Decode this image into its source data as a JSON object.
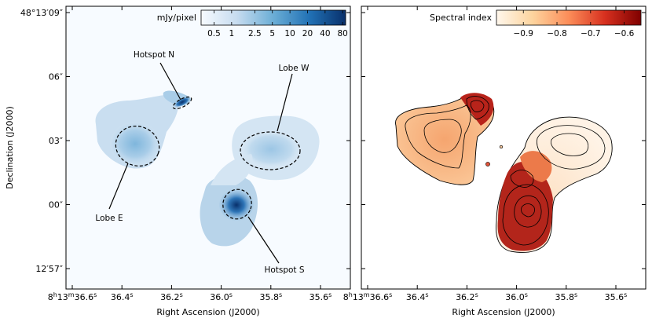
{
  "chart_data": [
    {
      "type": "heatmap",
      "panel": "left",
      "xlabel": "Right Ascension (J2000)",
      "ylabel": "Declination (J2000)",
      "x_ticks": [
        {
          "ra_seconds": 36.6,
          "label_main": "8",
          "label_h": "h",
          "label_mid": "13",
          "label_m": "m",
          "label_end": "36.6",
          "label_s": "s"
        },
        {
          "ra_seconds": 36.4,
          "label_main": "36.4",
          "label_s": "s"
        },
        {
          "ra_seconds": 36.2,
          "label_main": "36.2",
          "label_s": "s"
        },
        {
          "ra_seconds": 36.0,
          "label_main": "36.0",
          "label_s": "s"
        },
        {
          "ra_seconds": 35.8,
          "label_main": "35.8",
          "label_s": "s"
        },
        {
          "ra_seconds": 35.6,
          "label_main": "35.6",
          "label_s": "s"
        }
      ],
      "y_ticks": [
        {
          "dec_arcsec": 9,
          "label": "48°13′09″"
        },
        {
          "dec_arcsec": 6,
          "label": "06″"
        },
        {
          "dec_arcsec": 3,
          "label": "03″"
        },
        {
          "dec_arcsec": 0,
          "label": "00″"
        },
        {
          "dec_arcsec": -3,
          "label": "12′57″"
        }
      ],
      "colorbar": {
        "label": "mJy/pixel",
        "colormap": "Blues",
        "scale": "log",
        "range": [
          0.3,
          90
        ],
        "ticks": [
          {
            "value": 0.5,
            "label": "0.5"
          },
          {
            "value": 1,
            "label": "1"
          },
          {
            "value": 2.5,
            "label": "2.5"
          },
          {
            "value": 5,
            "label": "5"
          },
          {
            "value": 10,
            "label": "10"
          },
          {
            "value": 20,
            "label": "20"
          },
          {
            "value": 40,
            "label": "40"
          },
          {
            "value": 80,
            "label": "80"
          }
        ]
      },
      "annotations": [
        {
          "label": "Hotspot N",
          "ra_seconds": 36.18,
          "dec_arcsec": 4.8
        },
        {
          "label": "Lobe W",
          "ra_seconds": 35.78,
          "dec_arcsec": 2.5
        },
        {
          "label": "Lobe E",
          "ra_seconds": 36.37,
          "dec_arcsec": 2.6
        },
        {
          "label": "Hotspot S",
          "ra_seconds": 35.92,
          "dec_arcsec": 0.0
        }
      ],
      "colors": {
        "low": "#f7fbff",
        "mid": "#6baed6",
        "high": "#08306b"
      }
    },
    {
      "type": "heatmap",
      "panel": "right",
      "xlabel": "Right Ascension (J2000)",
      "colorbar": {
        "label": "Spectral index",
        "colormap": "OrRd",
        "scale": "linear",
        "range": [
          -0.98,
          -0.55
        ],
        "ticks": [
          {
            "value": -0.9,
            "label": "−0.9"
          },
          {
            "value": -0.8,
            "label": "−0.8"
          },
          {
            "value": -0.7,
            "label": "−0.7"
          },
          {
            "value": -0.6,
            "label": "−0.6"
          }
        ]
      },
      "colors": {
        "low": "#fff7ec",
        "mid": "#f0805a",
        "high": "#7f0000"
      }
    }
  ]
}
